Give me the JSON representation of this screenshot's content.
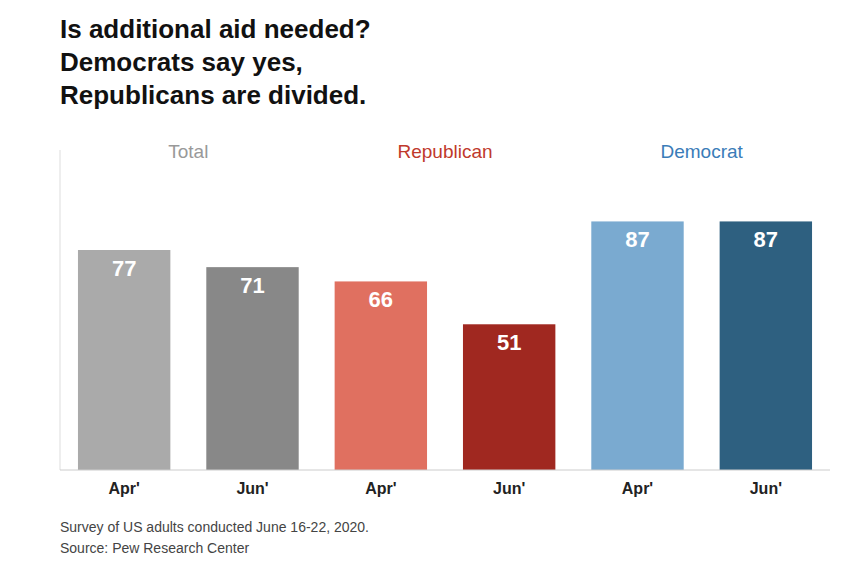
{
  "chart_data": {
    "type": "bar",
    "title": "Is additional aid needed?\nDemocrats say yes,\nRepublicans are divided.",
    "categories": [
      "Apr'",
      "Jun'",
      "Apr'",
      "Jun'",
      "Apr'",
      "Jun'"
    ],
    "values": [
      77,
      71,
      66,
      51,
      87,
      87
    ],
    "colors": [
      "#aaaaaa",
      "#888888",
      "#e07060",
      "#a02820",
      "#7aaad0",
      "#2e6080"
    ],
    "annotations": [
      {
        "text": "Total",
        "color": "#999999",
        "span": [
          0,
          1
        ]
      },
      {
        "text": "Republican",
        "color": "#c0392b",
        "span": [
          2,
          3
        ]
      },
      {
        "text": "Democrat",
        "color": "#3a7cb8",
        "span": [
          4,
          5
        ]
      }
    ],
    "notes": [
      "Survey of US adults conducted June 16-22, 2020.",
      "Source: Pew Research Center"
    ],
    "ylim": [
      0,
      112
    ],
    "yticks": [],
    "grid": false,
    "data_labels": true,
    "tick_labels": "x"
  }
}
